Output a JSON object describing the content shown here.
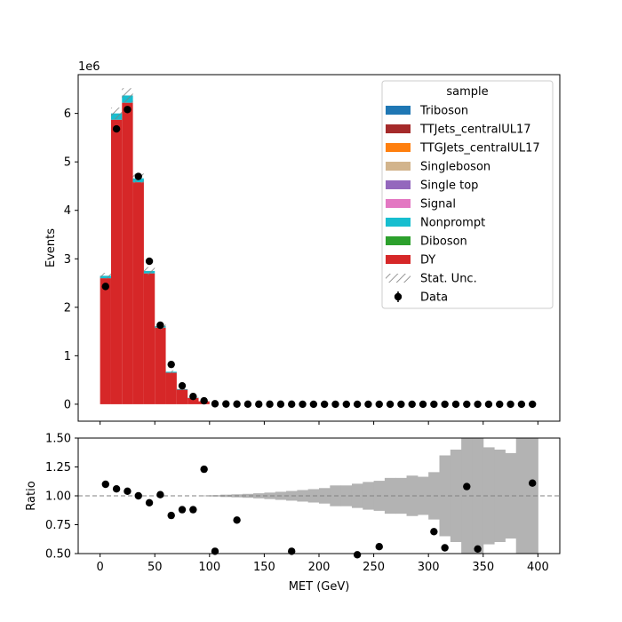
{
  "chart_data": [
    {
      "type": "bar",
      "subtype": "stacked-histogram",
      "xlabel": "",
      "ylabel": "Events",
      "offset_label": "1e6",
      "scale": 1000000,
      "xlim": [
        -20,
        420
      ],
      "ylim": [
        -0.35,
        6.8
      ],
      "yticks": [
        0,
        1,
        2,
        3,
        4,
        5,
        6
      ],
      "ytick_labels": [
        "0",
        "1",
        "2",
        "3",
        "4",
        "5",
        "6"
      ],
      "bin_edges": [
        0,
        10,
        20,
        30,
        40,
        50,
        60,
        70,
        80,
        90,
        100
      ],
      "legend": {
        "title": "sample",
        "placement": "top-right",
        "entries": [
          "Triboson",
          "TTJets_centralUL17",
          "TTGJets_centralUL17",
          "Singleboson",
          "Single top",
          "Signal",
          "Nonprompt",
          "Diboson",
          "DY",
          "Stat. Unc.",
          "Data"
        ]
      },
      "colors": {
        "Triboson": "#1f77b4",
        "TTJets_centralUL17": "#a52a2a",
        "TTGJets_centralUL17": "#ff7f0e",
        "Singleboson": "#d2b48c",
        "Single top": "#9467bd",
        "Signal": "#e377c2",
        "Nonprompt": "#17becf",
        "Diboson": "#2ca02c",
        "DY": "#d62728",
        "Stat. Unc.": "#808080",
        "Data": "#000000"
      },
      "series": [
        {
          "name": "DY",
          "values": [
            2.6,
            5.87,
            6.22,
            4.58,
            2.7,
            1.58,
            0.65,
            0.3,
            0.13,
            0.06
          ]
        },
        {
          "name": "Nonprompt",
          "values": [
            0.05,
            0.13,
            0.15,
            0.08,
            0.05,
            0.03,
            0.02,
            0.01,
            0.005,
            0.0
          ]
        }
      ],
      "stat_unc": [
        0.06,
        0.12,
        0.15,
        0.1,
        0.08,
        0.06,
        0.03,
        0.01,
        0.005,
        0.0
      ],
      "data": {
        "name": "Data",
        "x": [
          5,
          15,
          25,
          35,
          45,
          55,
          65,
          75,
          85,
          95,
          105,
          115,
          125,
          135,
          145,
          155,
          165,
          175,
          185,
          195,
          205,
          215,
          225,
          235,
          245,
          255,
          265,
          275,
          285,
          295,
          305,
          315,
          325,
          335,
          345,
          355,
          365,
          375,
          385,
          395
        ],
        "y": [
          2.43,
          5.68,
          6.08,
          4.7,
          2.95,
          1.63,
          0.82,
          0.38,
          0.16,
          0.07,
          0.01,
          0.005,
          0.003,
          0.002,
          0.001,
          0.001,
          0.001,
          0.001,
          0.0,
          0.0,
          0.0,
          0.0,
          0.0,
          0.0,
          0.0,
          0.0,
          0.0,
          0.0,
          0.0,
          0.0,
          0.0,
          0.0,
          0.0,
          0.0,
          0.0,
          0.0,
          0.0,
          0.0,
          0.0,
          0.0
        ]
      }
    },
    {
      "type": "scatter",
      "subtype": "ratio",
      "xlabel": "MET (GeV)",
      "ylabel": "Ratio",
      "xlim": [
        -20,
        420
      ],
      "ylim": [
        0.5,
        1.5
      ],
      "xticks": [
        0,
        50,
        100,
        150,
        200,
        250,
        300,
        350,
        400
      ],
      "xtick_labels": [
        "0",
        "50",
        "100",
        "150",
        "200",
        "250",
        "300",
        "350",
        "400"
      ],
      "yticks": [
        0.5,
        0.75,
        1.0,
        1.25,
        1.5
      ],
      "ytick_labels": [
        "0.50",
        "0.75",
        "1.00",
        "1.25",
        "1.50"
      ],
      "reference_line": 1.0,
      "unc_band": {
        "bin_edges": [
          0,
          10,
          20,
          30,
          40,
          50,
          60,
          70,
          80,
          90,
          100,
          110,
          120,
          130,
          140,
          150,
          160,
          170,
          180,
          190,
          200,
          210,
          220,
          230,
          240,
          250,
          260,
          270,
          280,
          290,
          300,
          310,
          320,
          330,
          340,
          350,
          360,
          370,
          380,
          390,
          400
        ],
        "half_width": [
          0.0,
          0.0,
          0.0,
          0.0,
          0.0,
          0.0,
          0.0,
          0.0,
          0.0,
          0.003,
          0.006,
          0.01,
          0.013,
          0.017,
          0.022,
          0.028,
          0.035,
          0.042,
          0.05,
          0.058,
          0.067,
          0.09,
          0.09,
          0.105,
          0.12,
          0.13,
          0.155,
          0.155,
          0.175,
          0.165,
          0.205,
          0.35,
          0.4,
          0.5,
          0.5,
          0.42,
          0.4,
          0.37,
          0.5,
          0.5
        ],
        "color": "#b3b3b3"
      },
      "points": {
        "x": [
          5,
          15,
          25,
          35,
          45,
          55,
          65,
          75,
          85,
          95,
          105,
          125,
          175,
          235,
          255,
          305,
          315,
          335,
          345,
          395
        ],
        "y": [
          1.1,
          1.06,
          1.04,
          1.0,
          0.94,
          1.01,
          0.83,
          0.88,
          0.88,
          1.23,
          0.52,
          0.79,
          0.52,
          0.49,
          0.56,
          0.69,
          0.55,
          1.08,
          0.54,
          1.11
        ]
      }
    }
  ]
}
